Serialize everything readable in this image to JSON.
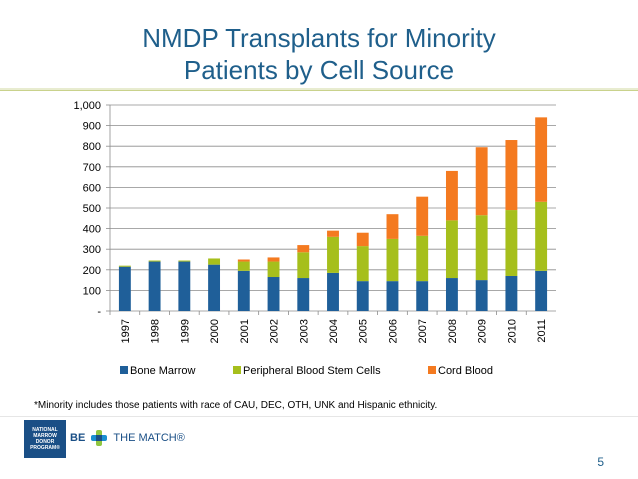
{
  "slide": {
    "title_line1": "NMDP Transplants for Minority",
    "title_line2": "Patients by Cell Source",
    "footnote": "*Minority includes those patients with race of CAU, DEC, OTH, UNK and Hispanic ethnicity.",
    "logo_text": "NATIONAL MARROW DONOR PROGRAM®",
    "brand_be": "BE",
    "brand_the_match": "THE MATCH®",
    "page_number": "5"
  },
  "chart_data": {
    "type": "bar",
    "stacked": true,
    "categories": [
      "1997",
      "1998",
      "1999",
      "2000",
      "2001",
      "2002",
      "2003",
      "2004",
      "2005",
      "2006",
      "2007",
      "2008",
      "2009",
      "2010",
      "2011"
    ],
    "series": [
      {
        "name": "Bone Marrow",
        "color": "#1f5f99",
        "values": [
          215,
          240,
          240,
          225,
          195,
          165,
          160,
          185,
          145,
          145,
          145,
          160,
          150,
          170,
          195
        ]
      },
      {
        "name": "Peripheral Blood Stem Cells",
        "color": "#a6bf1c",
        "values": [
          5,
          5,
          5,
          30,
          45,
          75,
          125,
          175,
          170,
          205,
          220,
          280,
          315,
          320,
          335
        ]
      },
      {
        "name": "Cord Blood",
        "color": "#f47a20",
        "values": [
          0,
          0,
          0,
          0,
          10,
          20,
          35,
          30,
          65,
          120,
          190,
          240,
          330,
          340,
          410
        ]
      }
    ],
    "ylim": [
      0,
      1000
    ],
    "y_ticks": [
      "-",
      "100",
      "200",
      "300",
      "400",
      "500",
      "600",
      "700",
      "800",
      "900",
      "1,000"
    ],
    "grid": true,
    "legend_position": "bottom"
  }
}
